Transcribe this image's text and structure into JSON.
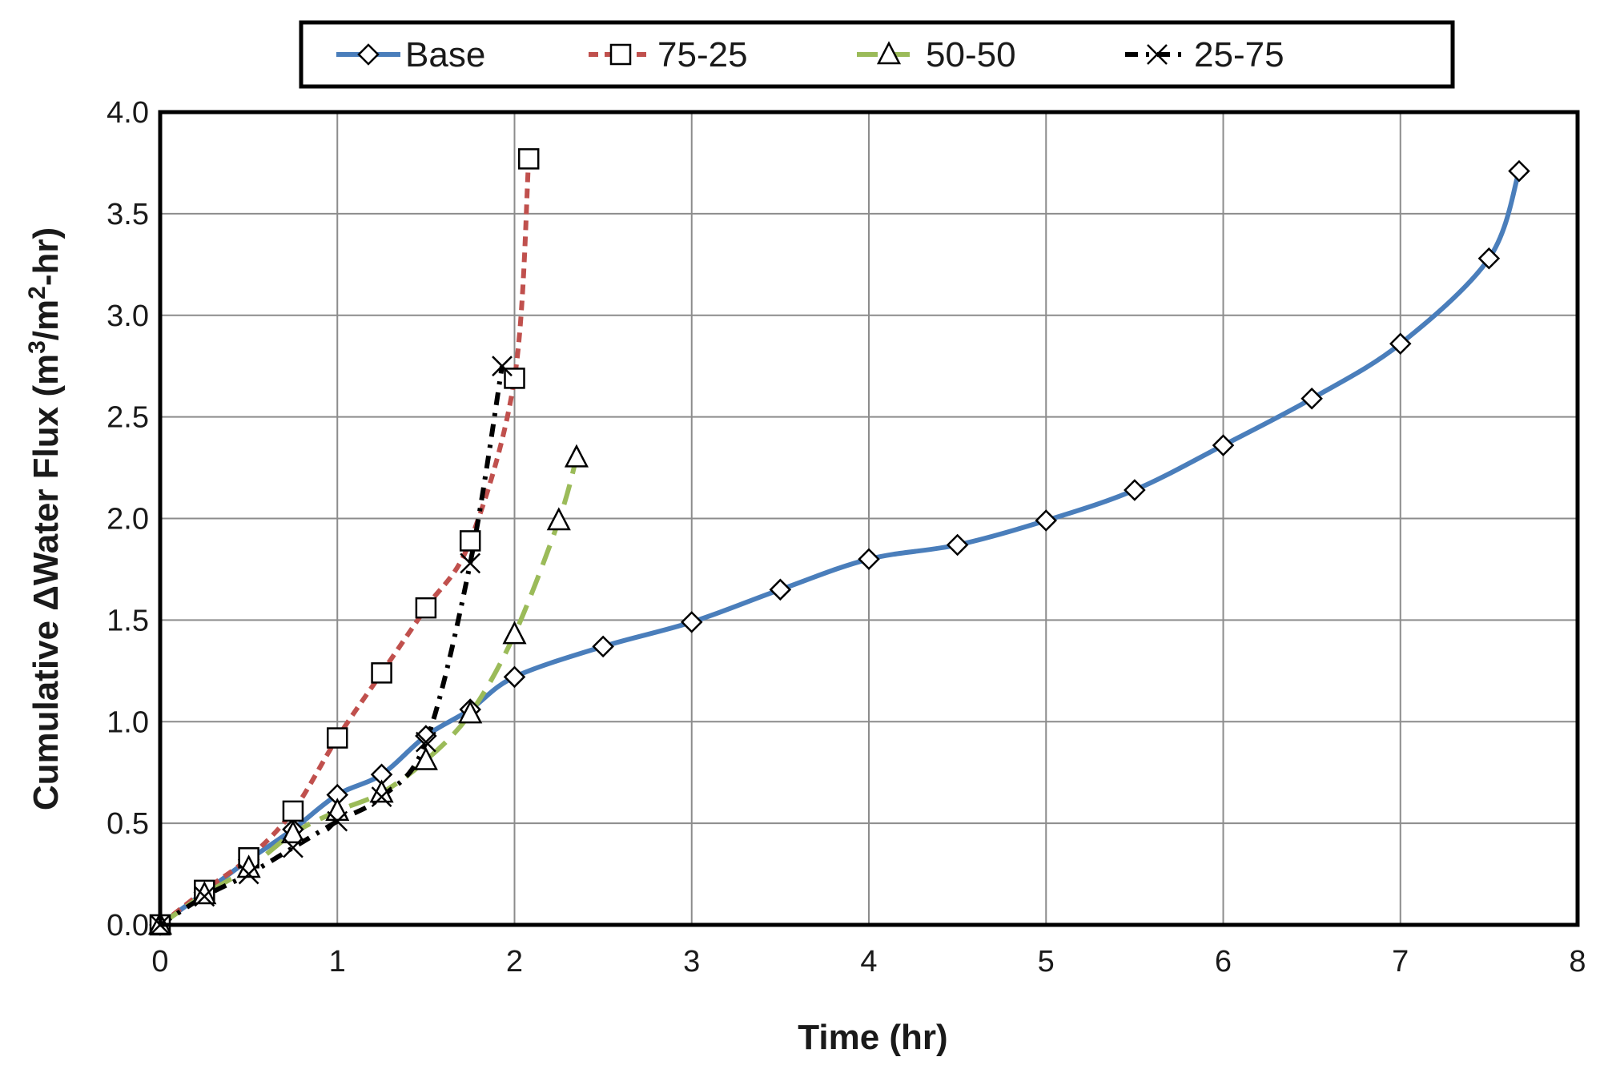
{
  "chart_data": {
    "type": "line",
    "xlabel": "Time (hr)",
    "ylabel": {
      "main": "Cumulative ΔWater  Flux  (m",
      "sup1": "3",
      "mid": "/m",
      "sup2": "2",
      "end": "-hr)"
    },
    "xlim": [
      0,
      8
    ],
    "ylim": [
      0,
      4
    ],
    "x_ticks": [
      0,
      1,
      2,
      3,
      4,
      5,
      6,
      7,
      8
    ],
    "y_ticks": [
      0,
      0.5,
      1,
      1.5,
      2,
      2.5,
      3,
      3.5,
      4
    ],
    "x_tick_labels": [
      "0",
      "1",
      "2",
      "3",
      "4",
      "5",
      "6",
      "7",
      "8"
    ],
    "y_tick_labels": [
      "0.0",
      "0.5",
      "1.0",
      "1.5",
      "2.0",
      "2.5",
      "3.0",
      "3.5",
      "4.0"
    ],
    "grid": true,
    "legend_position": "top",
    "series": [
      {
        "name": "Base",
        "color": "#4a7ebb",
        "dash": "solid",
        "marker": "diamond",
        "x": [
          0,
          0.25,
          0.5,
          0.75,
          1.0,
          1.25,
          1.5,
          1.75,
          2.0,
          2.5,
          3.0,
          3.5,
          4.0,
          4.5,
          5.0,
          5.5,
          6.0,
          6.5,
          7.0,
          7.5,
          7.67
        ],
        "y": [
          0.0,
          0.16,
          0.32,
          0.47,
          0.64,
          0.74,
          0.93,
          1.06,
          1.22,
          1.37,
          1.49,
          1.65,
          1.8,
          1.87,
          1.99,
          2.14,
          2.36,
          2.59,
          2.86,
          3.28,
          3.71
        ]
      },
      {
        "name": "75-25",
        "color": "#c0504d",
        "dash": "dashed",
        "marker": "square",
        "x": [
          0,
          0.25,
          0.5,
          0.75,
          1.0,
          1.25,
          1.5,
          1.75,
          2.0,
          2.08
        ],
        "y": [
          0.0,
          0.17,
          0.33,
          0.56,
          0.92,
          1.24,
          1.56,
          1.89,
          2.69,
          3.77
        ]
      },
      {
        "name": "50-50",
        "color": "#9bbb59",
        "dash": "longdash",
        "marker": "triangle",
        "x": [
          0,
          0.25,
          0.5,
          0.75,
          1.0,
          1.25,
          1.5,
          1.75,
          2.0,
          2.25,
          2.35
        ],
        "y": [
          0.0,
          0.15,
          0.28,
          0.45,
          0.56,
          0.65,
          0.81,
          1.04,
          1.43,
          1.99,
          2.3
        ]
      },
      {
        "name": "25-75",
        "color": "#000000",
        "dash": "dashdot",
        "marker": "x",
        "x": [
          0,
          0.25,
          0.5,
          0.75,
          1.0,
          1.25,
          1.5,
          1.75,
          1.93
        ],
        "y": [
          0.0,
          0.14,
          0.25,
          0.38,
          0.51,
          0.63,
          0.9,
          1.78,
          2.75
        ]
      }
    ]
  }
}
